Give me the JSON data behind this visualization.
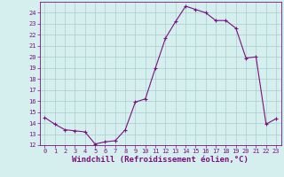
{
  "x": [
    0,
    1,
    2,
    3,
    4,
    5,
    6,
    7,
    8,
    9,
    10,
    11,
    12,
    13,
    14,
    15,
    16,
    17,
    18,
    19,
    20,
    21,
    22,
    23
  ],
  "y": [
    14.5,
    13.9,
    13.4,
    13.3,
    13.2,
    12.1,
    12.3,
    12.4,
    13.4,
    15.9,
    16.2,
    19.0,
    21.7,
    23.2,
    24.6,
    24.3,
    24.0,
    23.3,
    23.3,
    22.6,
    19.9,
    20.0,
    13.9,
    14.4
  ],
  "line_color": "#7B1080",
  "marker": "+",
  "bg_color": "#d5eeee",
  "grid_color": "#aacccc",
  "xlabel": "Windchill (Refroidissement éolien,°C)",
  "xlabel_color": "#7B1080",
  "ylim": [
    12,
    25
  ],
  "xlim": [
    -0.5,
    23.5
  ],
  "yticks": [
    12,
    13,
    14,
    15,
    16,
    17,
    18,
    19,
    20,
    21,
    22,
    23,
    24
  ],
  "xticks": [
    0,
    1,
    2,
    3,
    4,
    5,
    6,
    7,
    8,
    9,
    10,
    11,
    12,
    13,
    14,
    15,
    16,
    17,
    18,
    19,
    20,
    21,
    22,
    23
  ],
  "tick_color": "#7B1080",
  "tick_fontsize": 5.0,
  "xlabel_fontsize": 6.5,
  "spine_color": "#7B1080",
  "marker_size": 3,
  "line_width": 0.8
}
